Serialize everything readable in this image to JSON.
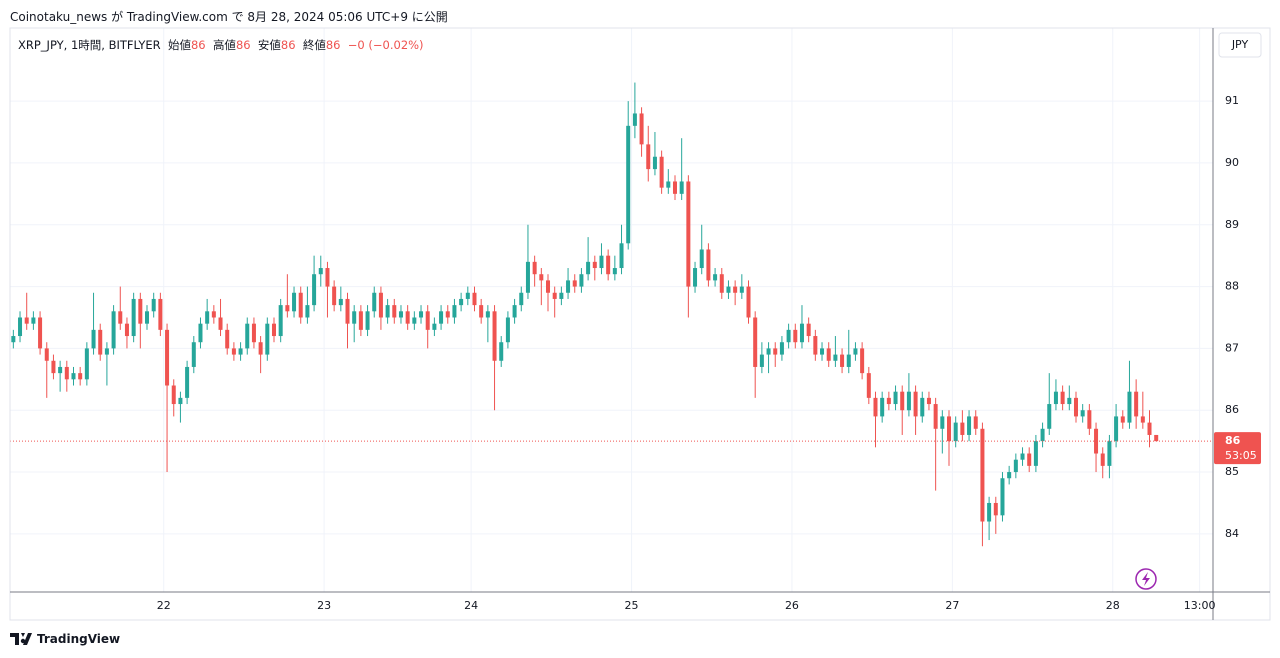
{
  "header": {
    "text": "Coinotaku_news が TradingView.com で 8月 28, 2024 05:06 UTC+9 に公開"
  },
  "legend": {
    "symbol": "XRP_JPY, 1時間, BITFLYER",
    "ohlc": [
      {
        "label": "始値",
        "value": "86"
      },
      {
        "label": "高値",
        "value": "86"
      },
      {
        "label": "安値",
        "value": "86"
      },
      {
        "label": "終値",
        "value": "86"
      }
    ],
    "change": "−0 (−0.02%)"
  },
  "currency": "JPY",
  "last_price_label": "86",
  "countdown": "53:05",
  "footer": "TradingView",
  "chart_data": {
    "type": "candlestick",
    "up_color": "#26a69a",
    "down_color": "#ef5350",
    "grid": true,
    "xlim": [
      -0.5,
      179.5
    ],
    "ylim": [
      83.06,
      92.15
    ],
    "yticks": [
      84,
      85,
      86,
      87,
      88,
      89,
      90,
      91
    ],
    "xticks": [
      {
        "value": 22.5,
        "label": "22"
      },
      {
        "value": 46.5,
        "label": "23"
      },
      {
        "value": 68.5,
        "label": "24"
      },
      {
        "value": 92.5,
        "label": "25"
      },
      {
        "value": 116.5,
        "label": "26"
      },
      {
        "value": 140.5,
        "label": "27"
      },
      {
        "value": 164.5,
        "label": "28"
      },
      {
        "value": 177.5,
        "label": "13:00"
      }
    ],
    "candles": [
      [
        87.1,
        87.3,
        87.0,
        87.2
      ],
      [
        87.2,
        87.6,
        87.1,
        87.5
      ],
      [
        87.5,
        87.9,
        87.3,
        87.4
      ],
      [
        87.4,
        87.6,
        87.3,
        87.5
      ],
      [
        87.5,
        87.6,
        86.9,
        87.0
      ],
      [
        87.0,
        87.1,
        86.2,
        86.8
      ],
      [
        86.8,
        86.9,
        86.5,
        86.6
      ],
      [
        86.6,
        86.8,
        86.3,
        86.7
      ],
      [
        86.7,
        86.8,
        86.3,
        86.5
      ],
      [
        86.5,
        86.7,
        86.4,
        86.6
      ],
      [
        86.6,
        86.7,
        86.4,
        86.5
      ],
      [
        86.5,
        87.1,
        86.4,
        87.0
      ],
      [
        87.0,
        87.9,
        86.9,
        87.3
      ],
      [
        87.3,
        87.4,
        86.8,
        86.9
      ],
      [
        86.9,
        87.1,
        86.4,
        87.0
      ],
      [
        87.0,
        87.7,
        86.9,
        87.6
      ],
      [
        87.6,
        88.0,
        87.3,
        87.4
      ],
      [
        87.4,
        87.5,
        87.0,
        87.2
      ],
      [
        87.2,
        87.9,
        87.1,
        87.8
      ],
      [
        87.8,
        87.9,
        87.0,
        87.4
      ],
      [
        87.4,
        87.7,
        87.3,
        87.6
      ],
      [
        87.6,
        87.9,
        87.5,
        87.8
      ],
      [
        87.8,
        87.9,
        87.2,
        87.3
      ],
      [
        87.3,
        87.4,
        85.0,
        86.4
      ],
      [
        86.4,
        86.5,
        85.9,
        86.1
      ],
      [
        86.1,
        86.3,
        85.8,
        86.2
      ],
      [
        86.2,
        86.8,
        86.1,
        86.7
      ],
      [
        86.7,
        87.2,
        86.6,
        87.1
      ],
      [
        87.1,
        87.5,
        87.0,
        87.4
      ],
      [
        87.4,
        87.8,
        87.3,
        87.6
      ],
      [
        87.6,
        87.7,
        87.4,
        87.5
      ],
      [
        87.5,
        87.8,
        87.2,
        87.3
      ],
      [
        87.3,
        87.4,
        86.9,
        87.0
      ],
      [
        87.0,
        87.1,
        86.8,
        86.9
      ],
      [
        86.9,
        87.1,
        86.8,
        87.0
      ],
      [
        87.0,
        87.5,
        86.9,
        87.4
      ],
      [
        87.4,
        87.5,
        87.0,
        87.1
      ],
      [
        87.1,
        87.2,
        86.6,
        86.9
      ],
      [
        86.9,
        87.5,
        86.8,
        87.4
      ],
      [
        87.4,
        87.5,
        87.1,
        87.2
      ],
      [
        87.2,
        87.8,
        87.1,
        87.7
      ],
      [
        87.7,
        88.2,
        87.5,
        87.6
      ],
      [
        87.6,
        88.0,
        87.5,
        87.9
      ],
      [
        87.9,
        88.0,
        87.4,
        87.5
      ],
      [
        87.5,
        88.0,
        87.4,
        87.7
      ],
      [
        87.7,
        88.5,
        87.6,
        88.2
      ],
      [
        88.2,
        88.5,
        88.0,
        88.3
      ],
      [
        88.3,
        88.4,
        87.5,
        88.0
      ],
      [
        88.0,
        88.1,
        87.6,
        87.7
      ],
      [
        87.7,
        88.0,
        87.6,
        87.8
      ],
      [
        87.8,
        87.9,
        87.0,
        87.4
      ],
      [
        87.4,
        87.7,
        87.1,
        87.6
      ],
      [
        87.6,
        87.7,
        87.2,
        87.3
      ],
      [
        87.3,
        87.7,
        87.2,
        87.6
      ],
      [
        87.6,
        88.0,
        87.5,
        87.9
      ],
      [
        87.9,
        88.0,
        87.3,
        87.5
      ],
      [
        87.5,
        87.8,
        87.4,
        87.7
      ],
      [
        87.7,
        87.8,
        87.4,
        87.5
      ],
      [
        87.5,
        87.7,
        87.4,
        87.6
      ],
      [
        87.6,
        87.7,
        87.3,
        87.4
      ],
      [
        87.4,
        87.6,
        87.3,
        87.5
      ],
      [
        87.5,
        87.7,
        87.4,
        87.6
      ],
      [
        87.6,
        87.7,
        87.0,
        87.3
      ],
      [
        87.3,
        87.5,
        87.2,
        87.4
      ],
      [
        87.4,
        87.7,
        87.3,
        87.6
      ],
      [
        87.6,
        87.7,
        87.4,
        87.5
      ],
      [
        87.5,
        87.8,
        87.4,
        87.7
      ],
      [
        87.7,
        87.9,
        87.6,
        87.8
      ],
      [
        87.8,
        88.0,
        87.7,
        87.9
      ],
      [
        87.9,
        88.0,
        87.6,
        87.7
      ],
      [
        87.7,
        87.8,
        87.4,
        87.5
      ],
      [
        87.5,
        87.7,
        87.1,
        87.6
      ],
      [
        87.6,
        87.7,
        86.0,
        86.8
      ],
      [
        86.8,
        87.2,
        86.7,
        87.1
      ],
      [
        87.1,
        87.6,
        87.0,
        87.5
      ],
      [
        87.5,
        87.8,
        87.4,
        87.7
      ],
      [
        87.7,
        88.0,
        87.6,
        87.9
      ],
      [
        87.9,
        89.0,
        87.8,
        88.4
      ],
      [
        88.4,
        88.5,
        88.0,
        88.2
      ],
      [
        88.2,
        88.3,
        87.7,
        88.1
      ],
      [
        88.1,
        88.2,
        87.6,
        87.9
      ],
      [
        87.9,
        88.0,
        87.5,
        87.8
      ],
      [
        87.8,
        88.0,
        87.7,
        87.9
      ],
      [
        87.9,
        88.3,
        87.8,
        88.1
      ],
      [
        88.1,
        88.2,
        87.9,
        88.0
      ],
      [
        88.0,
        88.3,
        87.9,
        88.2
      ],
      [
        88.2,
        88.8,
        88.1,
        88.4
      ],
      [
        88.4,
        88.5,
        88.1,
        88.3
      ],
      [
        88.3,
        88.7,
        88.2,
        88.5
      ],
      [
        88.5,
        88.6,
        88.1,
        88.2
      ],
      [
        88.2,
        88.5,
        88.1,
        88.3
      ],
      [
        88.3,
        89.0,
        88.2,
        88.7
      ],
      [
        88.7,
        91.0,
        88.6,
        90.6
      ],
      [
        90.6,
        91.3,
        90.4,
        90.8
      ],
      [
        90.8,
        90.9,
        90.1,
        90.3
      ],
      [
        90.3,
        90.6,
        89.7,
        89.9
      ],
      [
        89.9,
        90.5,
        89.8,
        90.1
      ],
      [
        90.1,
        90.2,
        89.5,
        89.6
      ],
      [
        89.6,
        89.9,
        89.5,
        89.7
      ],
      [
        89.7,
        89.8,
        89.4,
        89.5
      ],
      [
        89.5,
        90.4,
        89.4,
        89.7
      ],
      [
        89.7,
        89.8,
        87.5,
        88.0
      ],
      [
        88.0,
        88.4,
        87.9,
        88.3
      ],
      [
        88.3,
        89.0,
        88.2,
        88.6
      ],
      [
        88.6,
        88.7,
        88.0,
        88.1
      ],
      [
        88.1,
        88.3,
        88.0,
        88.2
      ],
      [
        88.2,
        88.3,
        87.8,
        87.9
      ],
      [
        87.9,
        88.1,
        87.8,
        88.0
      ],
      [
        88.0,
        88.1,
        87.7,
        87.9
      ],
      [
        87.9,
        88.2,
        87.8,
        88.0
      ],
      [
        88.0,
        88.1,
        87.4,
        87.5
      ],
      [
        87.5,
        87.6,
        86.2,
        86.7
      ],
      [
        86.7,
        87.1,
        86.6,
        86.9
      ],
      [
        86.9,
        87.1,
        86.6,
        87.0
      ],
      [
        87.0,
        87.1,
        86.7,
        86.9
      ],
      [
        86.9,
        87.2,
        86.8,
        87.1
      ],
      [
        87.1,
        87.4,
        87.0,
        87.3
      ],
      [
        87.3,
        87.4,
        87.0,
        87.1
      ],
      [
        87.1,
        87.7,
        87.0,
        87.4
      ],
      [
        87.4,
        87.5,
        87.1,
        87.2
      ],
      [
        87.2,
        87.3,
        86.8,
        86.9
      ],
      [
        86.9,
        87.1,
        86.8,
        87.0
      ],
      [
        87.0,
        87.1,
        86.7,
        86.8
      ],
      [
        86.8,
        87.2,
        86.7,
        86.9
      ],
      [
        86.9,
        87.0,
        86.6,
        86.7
      ],
      [
        86.7,
        87.3,
        86.6,
        86.9
      ],
      [
        86.9,
        87.1,
        86.8,
        87.0
      ],
      [
        87.0,
        87.1,
        86.5,
        86.6
      ],
      [
        86.6,
        86.7,
        86.1,
        86.2
      ],
      [
        86.2,
        86.3,
        85.4,
        85.9
      ],
      [
        85.9,
        86.3,
        85.8,
        86.2
      ],
      [
        86.2,
        86.3,
        86.0,
        86.1
      ],
      [
        86.1,
        86.4,
        86.0,
        86.3
      ],
      [
        86.3,
        86.4,
        85.6,
        86.0
      ],
      [
        86.0,
        86.6,
        85.9,
        86.3
      ],
      [
        86.3,
        86.4,
        85.6,
        85.9
      ],
      [
        85.9,
        86.3,
        85.8,
        86.2
      ],
      [
        86.2,
        86.3,
        86.0,
        86.1
      ],
      [
        86.1,
        86.2,
        84.7,
        85.7
      ],
      [
        85.7,
        86.0,
        85.3,
        85.9
      ],
      [
        85.9,
        86.0,
        85.1,
        85.5
      ],
      [
        85.5,
        85.9,
        85.4,
        85.8
      ],
      [
        85.8,
        86.0,
        85.5,
        85.6
      ],
      [
        85.6,
        86.0,
        85.5,
        85.9
      ],
      [
        85.9,
        86.0,
        85.6,
        85.7
      ],
      [
        85.7,
        85.8,
        83.8,
        84.2
      ],
      [
        84.2,
        84.6,
        83.9,
        84.5
      ],
      [
        84.5,
        84.6,
        84.0,
        84.3
      ],
      [
        84.3,
        85.0,
        84.2,
        84.9
      ],
      [
        84.9,
        85.1,
        84.8,
        85.0
      ],
      [
        85.0,
        85.3,
        84.9,
        85.2
      ],
      [
        85.2,
        85.4,
        85.1,
        85.3
      ],
      [
        85.3,
        85.4,
        85.0,
        85.1
      ],
      [
        85.1,
        85.6,
        85.0,
        85.5
      ],
      [
        85.5,
        85.8,
        85.4,
        85.7
      ],
      [
        85.7,
        86.6,
        85.6,
        86.1
      ],
      [
        86.1,
        86.5,
        86.0,
        86.3
      ],
      [
        86.3,
        86.4,
        86.0,
        86.1
      ],
      [
        86.1,
        86.4,
        86.0,
        86.2
      ],
      [
        86.2,
        86.3,
        85.8,
        85.9
      ],
      [
        85.9,
        86.1,
        85.8,
        86.0
      ],
      [
        86.0,
        86.1,
        85.6,
        85.7
      ],
      [
        85.7,
        85.8,
        85.0,
        85.3
      ],
      [
        85.3,
        85.4,
        84.9,
        85.1
      ],
      [
        85.1,
        85.6,
        84.9,
        85.5
      ],
      [
        85.5,
        86.1,
        85.4,
        85.9
      ],
      [
        85.9,
        86.0,
        85.7,
        85.8
      ],
      [
        85.8,
        86.8,
        85.7,
        86.3
      ],
      [
        86.3,
        86.5,
        85.7,
        85.9
      ],
      [
        85.9,
        86.3,
        85.7,
        85.8
      ],
      [
        85.8,
        86.0,
        85.4,
        85.6
      ],
      [
        85.6,
        85.6,
        85.5,
        85.5
      ]
    ]
  }
}
